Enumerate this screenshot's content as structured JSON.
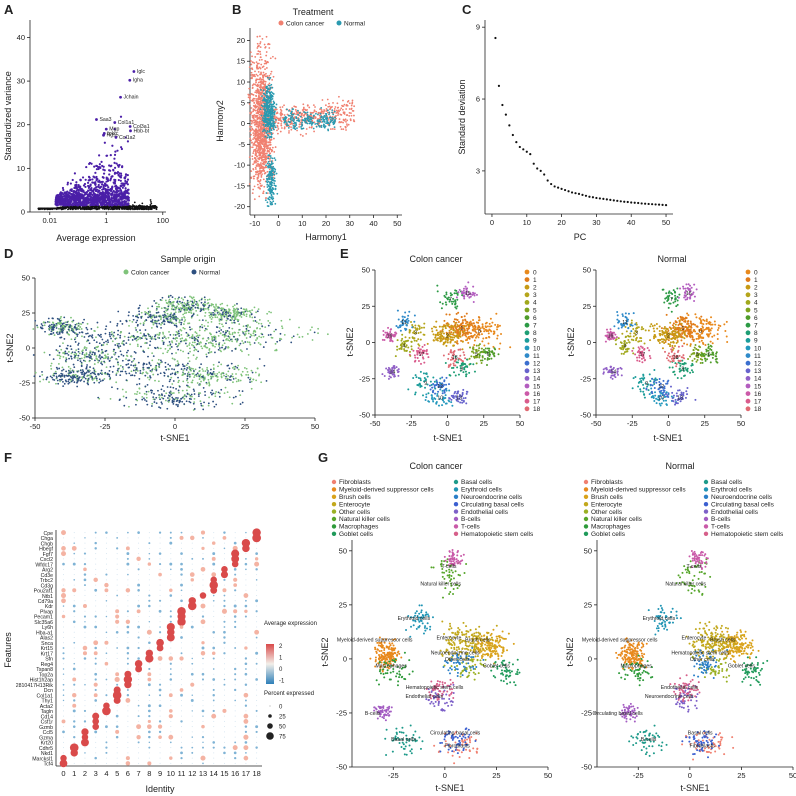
{
  "panels": {
    "A": {
      "label": "A",
      "xlabel": "Average expression",
      "ylabel": "Standardized variance"
    },
    "B": {
      "label": "B",
      "xlabel": "Harmony1",
      "ylabel": "Harmony2",
      "legend_title": "Treatment"
    },
    "C": {
      "label": "C",
      "xlabel": "PC",
      "ylabel": "Standard deviation"
    },
    "D": {
      "label": "D",
      "title": "Sample origin",
      "xlabel": "t-SNE1",
      "ylabel": "t-SNE2"
    },
    "E": {
      "label": "E",
      "title_left": "Colon cancer",
      "title_right": "Normal",
      "xlabel": "t-SNE1",
      "ylabel": "t-SNE2"
    },
    "F": {
      "label": "F",
      "xlabel": "Identity",
      "ylabel": "Features",
      "legend_expr_title": "Average expression",
      "legend_pct_title": "Percent expressed"
    },
    "G": {
      "label": "G",
      "title_left": "Colon cancer",
      "title_right": "Normal",
      "xlabel": "t-SNE1",
      "ylabel": "t-SNE2"
    }
  },
  "colors": {
    "colon": "#f08070",
    "normal": "#2a9ab0",
    "d_colon": "#7fc37a",
    "d_normal": "#2d4f7f",
    "var_hi": "#4b1fa8",
    "var_lo": "#111111",
    "f_hi": "#d94a4a",
    "f_mid": "#f2efe9",
    "f_lo": "#2d7fb8"
  },
  "chart_data": [
    {
      "panel": "A",
      "type": "scatter",
      "xscale": "log",
      "x_ticks": [
        "0.01",
        "1",
        "100"
      ],
      "y_ticks": [
        "0",
        "10",
        "20",
        "30",
        "40"
      ],
      "xlim": [
        0.002,
        130
      ],
      "ylim": [
        0,
        44
      ],
      "highlighted": [
        {
          "gene": "Iglc",
          "x": 9.5,
          "y": 32.2
        },
        {
          "gene": "Igha",
          "x": 6.8,
          "y": 30.2
        },
        {
          "gene": "Jchain",
          "x": 3.2,
          "y": 26.3
        },
        {
          "gene": "Saa3",
          "x": 0.45,
          "y": 21.2
        },
        {
          "gene": "Col1a1",
          "x": 2.0,
          "y": 20.5
        },
        {
          "gene": "Col3a1",
          "x": 7.0,
          "y": 19.6
        },
        {
          "gene": "Mgp",
          "x": 1.0,
          "y": 19.0
        },
        {
          "gene": "Hbb-bt",
          "x": 7.2,
          "y": 18.6
        },
        {
          "gene": "Igkc",
          "x": 0.85,
          "y": 18.0
        },
        {
          "gene": "Rgs5",
          "x": 0.8,
          "y": 17.6
        },
        {
          "gene": "Col1a2",
          "x": 2.2,
          "y": 17.1
        }
      ]
    },
    {
      "panel": "B",
      "type": "scatter",
      "x_ticks": [
        "-10",
        "0",
        "10",
        "20",
        "30",
        "40",
        "50"
      ],
      "y_ticks": [
        "-20",
        "-15",
        "-10",
        "-5",
        "0",
        "5",
        "10",
        "15",
        "20"
      ],
      "xlim": [
        -12,
        52
      ],
      "ylim": [
        -22,
        23
      ],
      "series": [
        {
          "name": "Colon cancer"
        },
        {
          "name": "Normal"
        }
      ]
    },
    {
      "panel": "C",
      "type": "scatter",
      "x_ticks": [
        "0",
        "10",
        "20",
        "30",
        "40",
        "50"
      ],
      "y_ticks": [
        "3",
        "6",
        "9"
      ],
      "xlim": [
        -2,
        52
      ],
      "ylim": [
        1.2,
        9.3
      ],
      "values": [
        8.55,
        6.55,
        5.75,
        5.35,
        4.9,
        4.5,
        4.2,
        4.0,
        3.9,
        3.8,
        3.7,
        3.3,
        3.1,
        3.0,
        2.85,
        2.6,
        2.45,
        2.35,
        2.3,
        2.25,
        2.2,
        2.15,
        2.1,
        2.07,
        2.04,
        2.0,
        1.96,
        1.92,
        1.9,
        1.87,
        1.85,
        1.83,
        1.81,
        1.79,
        1.77,
        1.75,
        1.73,
        1.71,
        1.7,
        1.68,
        1.67,
        1.66,
        1.64,
        1.63,
        1.62,
        1.61,
        1.6,
        1.59,
        1.58,
        1.57
      ]
    },
    {
      "panel": "D",
      "type": "scatter",
      "x_ticks": [
        "-50",
        "-25",
        "0",
        "25",
        "50"
      ],
      "y_ticks": [
        "-50",
        "-25",
        "0",
        "25",
        "50"
      ],
      "xlim": [
        -50,
        50
      ],
      "ylim": [
        -50,
        50
      ],
      "series": [
        {
          "name": "Colon cancer"
        },
        {
          "name": "Normal"
        }
      ]
    },
    {
      "panel": "E",
      "type": "scatter",
      "x_ticks": [
        "-50",
        "-25",
        "0",
        "25",
        "50"
      ],
      "y_ticks": [
        "-50",
        "-25",
        "0",
        "25",
        "50"
      ],
      "cluster_labels": [
        "0",
        "1",
        "2",
        "3",
        "4",
        "5",
        "6",
        "7",
        "8",
        "9",
        "10",
        "11",
        "12",
        "13",
        "14",
        "15",
        "16",
        "17",
        "18"
      ],
      "cluster_colors": [
        "#e8891c",
        "#e07b1a",
        "#c79a14",
        "#b5a51b",
        "#a0a81c",
        "#7da31f",
        "#4f9c2a",
        "#2c9a45",
        "#1e9e74",
        "#1b9c9a",
        "#2498bd",
        "#2f8ac9",
        "#3b6fcf",
        "#6763cc",
        "#9160c7",
        "#b35dbf",
        "#cb5aa8",
        "#d95b8b",
        "#e06a73"
      ]
    },
    {
      "panel": "F",
      "type": "dotplot",
      "identities": [
        "0",
        "1",
        "2",
        "3",
        "4",
        "5",
        "6",
        "7",
        "8",
        "9",
        "10",
        "11",
        "12",
        "13",
        "14",
        "15",
        "16",
        "17",
        "18"
      ],
      "features": [
        "Cpe",
        "Chga",
        "Chgb",
        "Hbegf",
        "Fgf7",
        "Cxcl2",
        "Wfdc17",
        "Arg2",
        "Cd3e",
        "Trbc2",
        "Cd3g",
        "Pou2af1",
        "Ntb1",
        "Cd79a",
        "Kdr",
        "Plvap",
        "Pecam1",
        "Slc35a6",
        "Ly6h",
        "Hba-a1",
        "Alas2",
        "Snca",
        "Krt15",
        "Krt17",
        "Sfn",
        "Reg4",
        "Tspan8",
        "Top2a",
        "Hist1h2ap",
        "2810417H13Rik",
        "Dcn",
        "Col1a1",
        "Thy1",
        "Acta2",
        "Tagln",
        "Cd14",
        "Csf1r",
        "Gzmb",
        "Ccl5",
        "Gzma",
        "Krt20",
        "Cdhr5",
        "Nkd1",
        "Marcksl1",
        "Tcf4"
      ],
      "color_ticks": [
        "2",
        "1",
        "0",
        "-1"
      ],
      "size_ticks": [
        "0",
        "25",
        "50",
        "75"
      ]
    },
    {
      "panel": "G",
      "type": "scatter",
      "x_ticks": [
        "-25",
        "0",
        "25",
        "50"
      ],
      "y_ticks": [
        "-50",
        "-25",
        "0",
        "25",
        "50"
      ],
      "celltypes_col1": [
        "Fibroblasts",
        "Myeloid-derived suppressor cells",
        "Brush cells",
        "Enterocyte",
        "Other cells",
        "Natural killer cells",
        "Macrophages",
        "Goblet cells"
      ],
      "celltypes_col2": [
        "Basal cells",
        "Erythroid cells",
        "Neuroendocrine cells",
        "Circulating basal cells",
        "Endothelial cells",
        "B-cells",
        "T-cells",
        "Hematopoietic stem cells"
      ],
      "colors_col1": [
        "#f08070",
        "#e8891c",
        "#d9a21a",
        "#c2a81c",
        "#9ab023",
        "#56a52a",
        "#2e9a3a",
        "#1f9a5a"
      ],
      "colors_col2": [
        "#1d9a8a",
        "#1f94b4",
        "#2a7fc8",
        "#3b5fd0",
        "#7d60c8",
        "#a35cc2",
        "#c95aa8",
        "#d65f8a"
      ],
      "annotations_left": [
        "T-cells",
        "Natural killer cells",
        "Erythroid cells",
        "Myeloid-derived suppressor cells",
        "Enterocyte",
        "Brush cells",
        "Macrophages",
        "Neuroendocrine cells",
        "Other cells",
        "Goblet cells",
        "Hematopoietic stem cells",
        "Endothelial cells",
        "B-cells",
        "Basal cells",
        "Circulating basal cells",
        "Fibroblasts"
      ],
      "annotations_right": [
        "T-cells",
        "Natural killer cells",
        "Erythroid cells",
        "Myeloid-derived suppressor cells",
        "Enterocyte",
        "Brush cells",
        "Macrophages",
        "Hematopoietic stem cells",
        "Other cells",
        "Goblet cells",
        "Endothelial cells",
        "Neuroendocrine cells",
        "Circulating basal cells",
        "B-cells",
        "Basal cells",
        "Fibroblasts"
      ]
    }
  ]
}
